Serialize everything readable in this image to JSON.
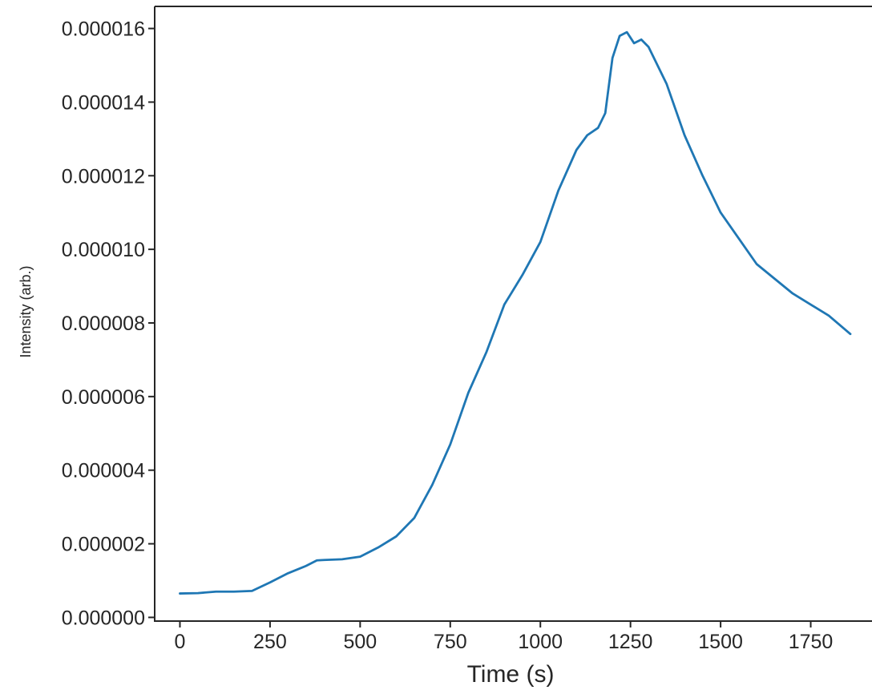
{
  "chart_data": {
    "type": "line",
    "title": "",
    "xlabel": "Time (s)",
    "ylabel": "Intensity (arb.)",
    "xlim": [
      -70,
      1920
    ],
    "ylim": [
      -1e-07,
      1.66e-05
    ],
    "x_ticks": [
      0,
      250,
      500,
      750,
      1000,
      1250,
      1500,
      1750
    ],
    "x_tick_labels": [
      "0",
      "250",
      "500",
      "750",
      "1000",
      "1250",
      "1500",
      "1750"
    ],
    "y_ticks": [
      0,
      2e-06,
      4e-06,
      6e-06,
      8e-06,
      1e-05,
      1.2e-05,
      1.4e-05,
      1.6e-05
    ],
    "y_tick_labels": [
      "0.000000",
      "0.000002",
      "0.000004",
      "0.000006",
      "0.000008",
      "0.000010",
      "0.000012",
      "0.000014",
      "0.000016"
    ],
    "grid": false,
    "colors": {
      "line": "#1f77b4",
      "axes": "#262626"
    },
    "series": [
      {
        "x": [
          0,
          50,
          100,
          150,
          200,
          250,
          300,
          350,
          380,
          400,
          450,
          500,
          550,
          600,
          650,
          700,
          750,
          800,
          850,
          900,
          950,
          1000,
          1050,
          1100,
          1130,
          1160,
          1180,
          1200,
          1220,
          1240,
          1260,
          1280,
          1300,
          1350,
          1400,
          1450,
          1500,
          1550,
          1600,
          1650,
          1700,
          1750,
          1800,
          1860
        ],
        "y": [
          6.5e-07,
          6.6e-07,
          7e-07,
          7e-07,
          7.2e-07,
          9.5e-07,
          1.2e-06,
          1.4e-06,
          1.55e-06,
          1.56e-06,
          1.58e-06,
          1.65e-06,
          1.9e-06,
          2.2e-06,
          2.7e-06,
          3.6e-06,
          4.7e-06,
          6.1e-06,
          7.2e-06,
          8.5e-06,
          9.3e-06,
          1.02e-05,
          1.16e-05,
          1.27e-05,
          1.31e-05,
          1.33e-05,
          1.37e-05,
          1.52e-05,
          1.58e-05,
          1.59e-05,
          1.56e-05,
          1.57e-05,
          1.55e-05,
          1.45e-05,
          1.31e-05,
          1.2e-05,
          1.1e-05,
          1.03e-05,
          9.6e-06,
          9.2e-06,
          8.8e-06,
          8.5e-06,
          8.2e-06,
          7.7e-06
        ]
      }
    ]
  }
}
